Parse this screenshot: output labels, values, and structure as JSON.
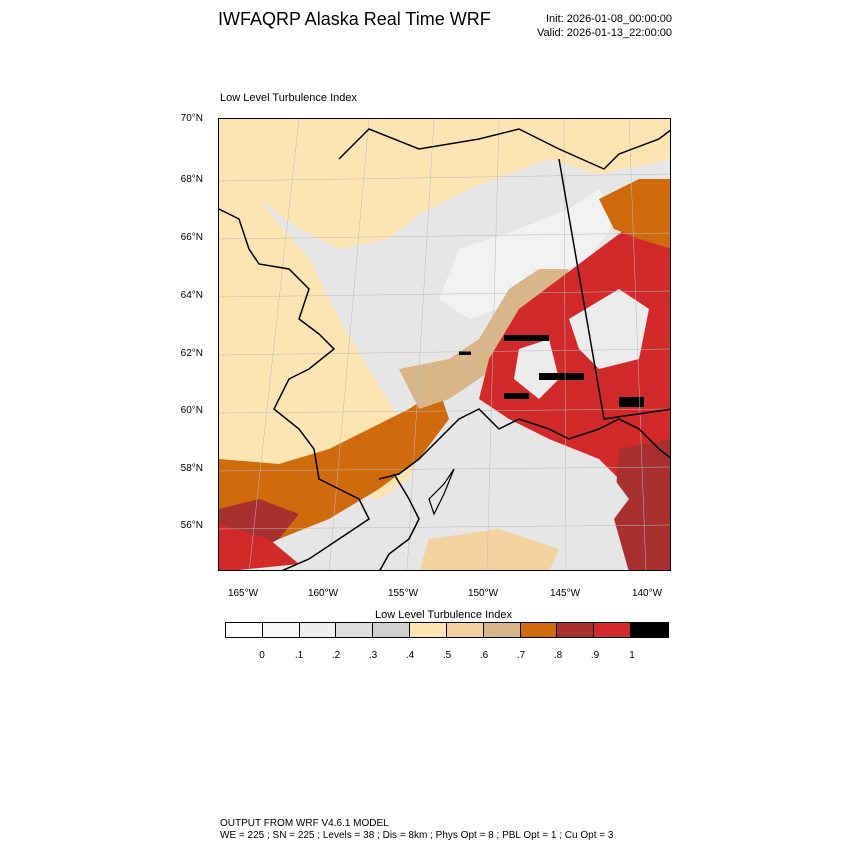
{
  "header": {
    "title": "IWFAQRP Alaska Real Time WRF",
    "init": "Init: 2026-01-08_00:00:00",
    "valid": "Valid: 2026-01-13_22:00:00"
  },
  "panel": {
    "title": "Low Level Turbulence Index"
  },
  "map": {
    "lat_labels": [
      "70°N",
      "68°N",
      "66°N",
      "64°N",
      "62°N",
      "60°N",
      "58°N",
      "56°N"
    ],
    "lon_labels": [
      "165°W",
      "160°W",
      "155°W",
      "150°W",
      "145°W",
      "140°W"
    ]
  },
  "colorbar": {
    "title": "Low Level Turbulence Index",
    "labels": [
      "0",
      ".1",
      ".2",
      ".3",
      ".4",
      ".5",
      ".6",
      ".7",
      ".8",
      ".9",
      "1"
    ],
    "colors": [
      "#ffffff",
      "#f7f7f7",
      "#efefef",
      "#e0e0e0",
      "#cfcfcf",
      "#fde4b3",
      "#f4d2a0",
      "#d9b68a",
      "#cf6a0d",
      "#a8302e",
      "#d22a2a",
      "#000000"
    ]
  },
  "footer": {
    "line1": "OUTPUT FROM WRF V4.6.1 MODEL",
    "line2": "WE = 225 ; SN = 225 ; Levels = 38 ; Dis = 8km ; Phys Opt = 8 ; PBL Opt = 1 ; Cu Opt = 3"
  }
}
